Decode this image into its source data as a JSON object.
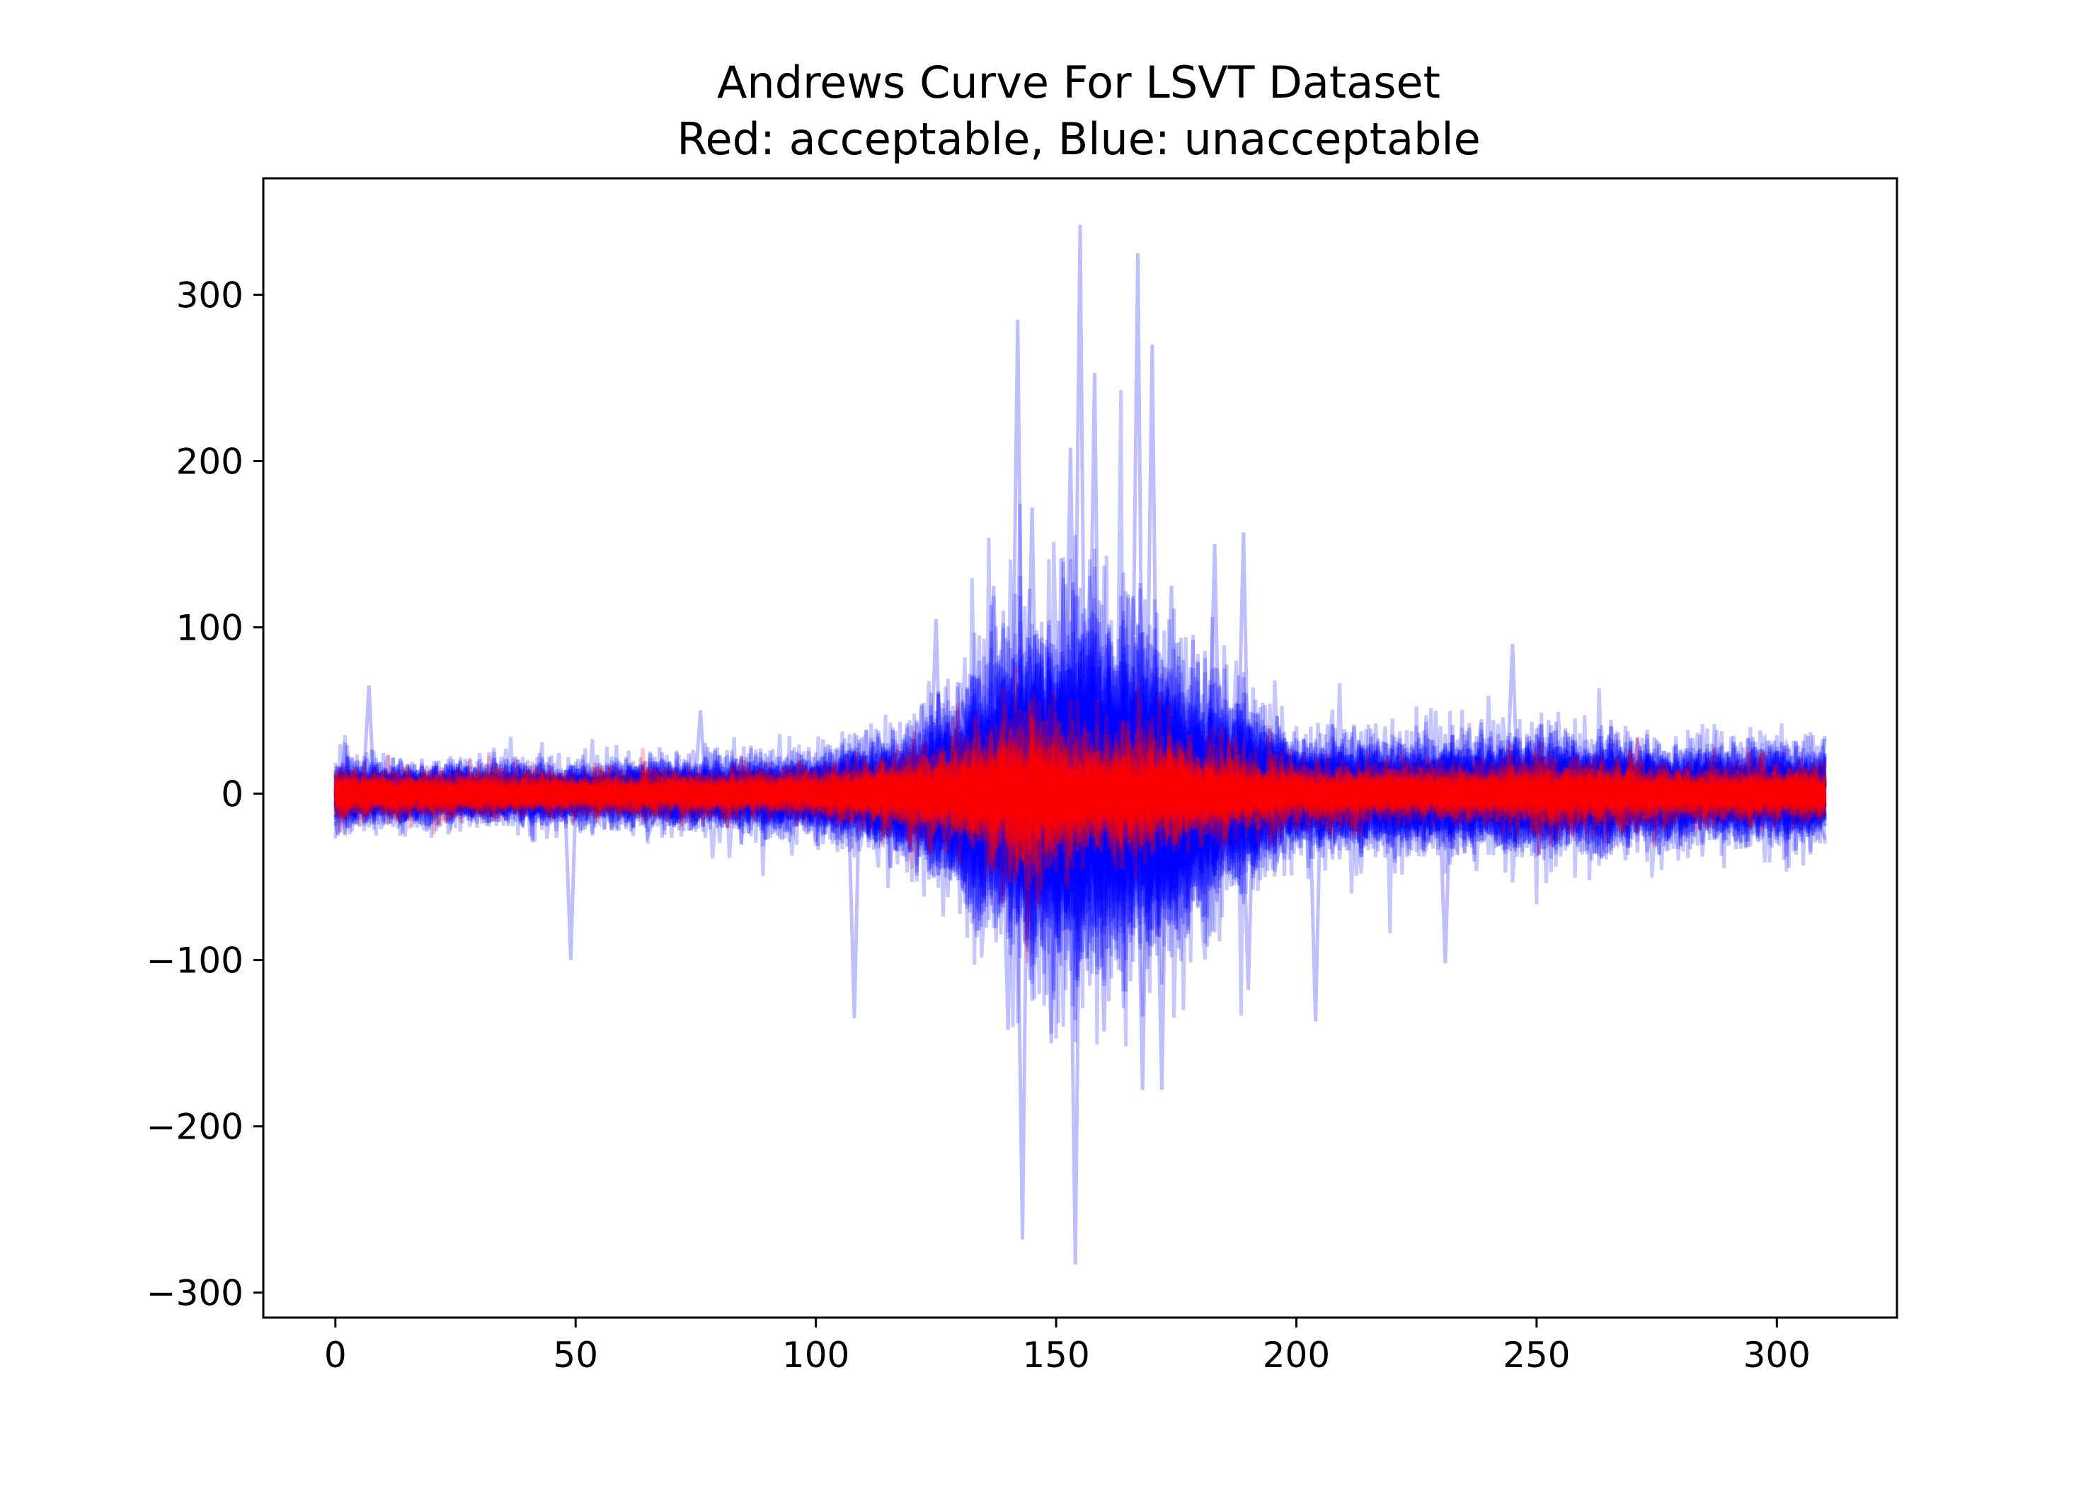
{
  "chart_data": {
    "type": "line",
    "title": "Andrews Curve For LSVT Dataset",
    "subtitle": "Red: acceptable, Blue: unacceptable",
    "xlabel": "",
    "ylabel": "",
    "xlim": [
      -15,
      325
    ],
    "ylim": [
      -315,
      370
    ],
    "grid": false,
    "legend": "none",
    "x_ticks": [
      0,
      50,
      100,
      150,
      200,
      250,
      300
    ],
    "y_ticks": [
      -300,
      -200,
      -100,
      0,
      100,
      200,
      300
    ],
    "x_tick_labels": [
      "0",
      "50",
      "100",
      "150",
      "200",
      "250",
      "300"
    ],
    "y_tick_labels": [
      "−300",
      "−200",
      "−100",
      "0",
      "100",
      "200",
      "300"
    ],
    "colors": {
      "acceptable": "#ff0000",
      "unacceptable": "#0000ff"
    },
    "x_range": [
      0,
      310
    ],
    "num_curves": {
      "acceptable": 42,
      "unacceptable": 84
    },
    "band_half_width": {
      "acceptable": {
        "x": [
          0,
          50,
          100,
          130,
          145,
          150,
          160,
          170,
          180,
          200,
          240,
          250,
          280,
          310
        ],
        "y": [
          12,
          10,
          12,
          25,
          45,
          35,
          30,
          30,
          25,
          15,
          14,
          18,
          14,
          14
        ]
      },
      "unacceptable": {
        "x": [
          0,
          50,
          100,
          120,
          130,
          140,
          150,
          160,
          170,
          180,
          190,
          200,
          240,
          250,
          280,
          310
        ],
        "y": [
          15,
          14,
          18,
          30,
          50,
          70,
          90,
          85,
          75,
          55,
          40,
          25,
          25,
          28,
          22,
          22
        ]
      }
    },
    "spikes": [
      {
        "x": 7,
        "y": 65,
        "series": "unacceptable"
      },
      {
        "x": 49,
        "y": -100,
        "series": "unacceptable"
      },
      {
        "x": 76,
        "y": 50,
        "series": "unacceptable"
      },
      {
        "x": 108,
        "y": -135,
        "series": "unacceptable"
      },
      {
        "x": 125,
        "y": 105,
        "series": "unacceptable"
      },
      {
        "x": 137,
        "y": 125,
        "series": "unacceptable"
      },
      {
        "x": 140,
        "y": -142,
        "series": "unacceptable"
      },
      {
        "x": 142,
        "y": 285,
        "series": "unacceptable"
      },
      {
        "x": 143,
        "y": -268,
        "series": "unacceptable"
      },
      {
        "x": 145,
        "y": 172,
        "series": "unacceptable"
      },
      {
        "x": 149,
        "y": -150,
        "series": "unacceptable"
      },
      {
        "x": 153,
        "y": 208,
        "series": "unacceptable"
      },
      {
        "x": 154,
        "y": -283,
        "series": "unacceptable"
      },
      {
        "x": 155,
        "y": 342,
        "series": "unacceptable"
      },
      {
        "x": 158,
        "y": 253,
        "series": "unacceptable"
      },
      {
        "x": 160,
        "y": -143,
        "series": "unacceptable"
      },
      {
        "x": 167,
        "y": 325,
        "series": "unacceptable"
      },
      {
        "x": 168,
        "y": -178,
        "series": "unacceptable"
      },
      {
        "x": 170,
        "y": 270,
        "series": "unacceptable"
      },
      {
        "x": 172,
        "y": -178,
        "series": "unacceptable"
      },
      {
        "x": 174,
        "y": 125,
        "series": "unacceptable"
      },
      {
        "x": 183,
        "y": 150,
        "series": "unacceptable"
      },
      {
        "x": 189,
        "y": 157,
        "series": "unacceptable"
      },
      {
        "x": 190,
        "y": -118,
        "series": "unacceptable"
      },
      {
        "x": 204,
        "y": -137,
        "series": "unacceptable"
      },
      {
        "x": 231,
        "y": -102,
        "series": "unacceptable"
      },
      {
        "x": 245,
        "y": 90,
        "series": "unacceptable"
      }
    ]
  }
}
